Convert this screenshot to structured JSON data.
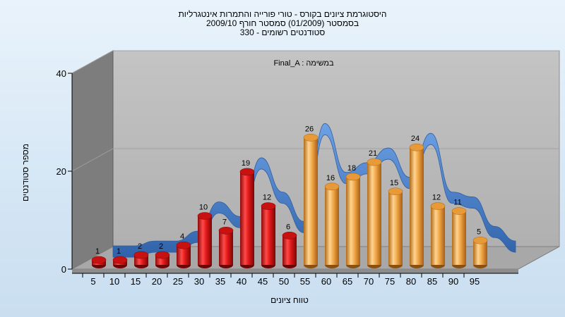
{
  "chart_data": {
    "type": "bar",
    "title_lines": [
      "היסטוגרמת ציונים בקורס - טורי פורייה והתמרות אינטגרליות",
      "בסמסטר  (01/2009)  סמסטר חורף 2009/10",
      "330 - סטודנטים רשומים"
    ],
    "annotation": "Final_A : במשימה",
    "xlabel": "טווח ציונים",
    "ylabel": "מספר סטודנטים",
    "ylim": [
      0,
      40
    ],
    "yticks": [
      0,
      20,
      40
    ],
    "categories": [
      "5",
      "10",
      "15",
      "20",
      "25",
      "30",
      "35",
      "40",
      "45",
      "50",
      "55",
      "60",
      "65",
      "70",
      "75",
      "80",
      "85",
      "90",
      "95"
    ],
    "values": [
      1,
      1,
      2,
      2,
      4,
      10,
      7,
      19,
      12,
      6,
      26,
      16,
      18,
      21,
      15,
      24,
      12,
      11,
      5
    ],
    "series_colors": {
      "below_55": "#e01818",
      "from_55": "#f0a848",
      "line": "#3a78c8",
      "back_wall": "#bdbdbd",
      "side_wall": "#7d7d7d",
      "floor": "#a8a8a8"
    },
    "grid": true
  }
}
